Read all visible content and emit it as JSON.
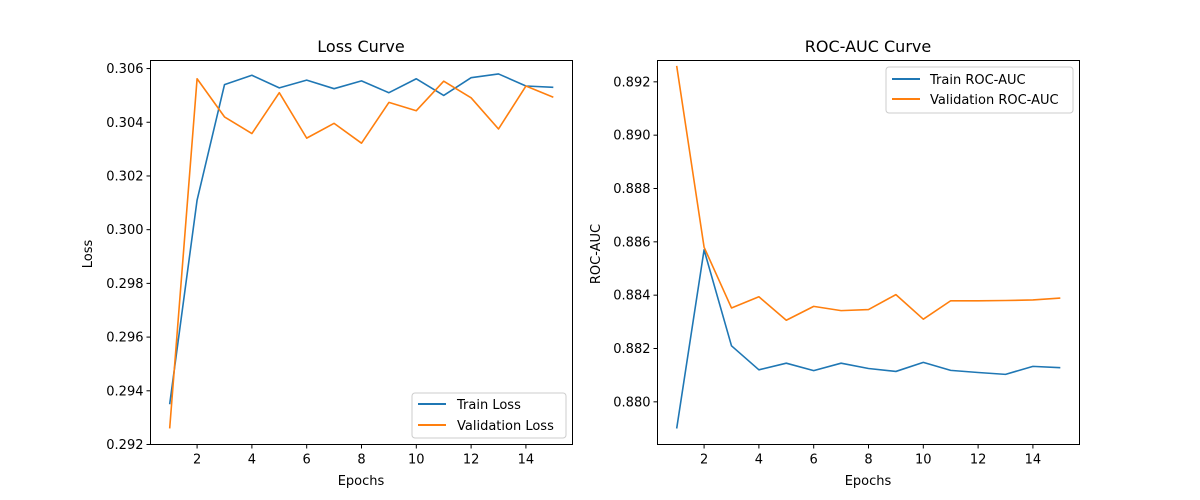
{
  "chart_data": [
    {
      "type": "line",
      "title": "Loss Curve",
      "xlabel": "Epochs",
      "ylabel": "Loss",
      "x": [
        1,
        2,
        3,
        4,
        5,
        6,
        7,
        8,
        9,
        10,
        11,
        12,
        13,
        14,
        15
      ],
      "xlim": [
        0.3,
        15.7
      ],
      "ylim": [
        0.292,
        0.3063
      ],
      "xticks": [
        2,
        4,
        6,
        8,
        10,
        12,
        14
      ],
      "yticks": [
        0.292,
        0.294,
        0.296,
        0.298,
        0.3,
        0.302,
        0.304,
        0.306
      ],
      "ytick_decimals": 3,
      "grid": false,
      "legend_position": "lower-right",
      "series": [
        {
          "name": "Train Loss",
          "color": "#1f77b4",
          "values": [
            0.2935,
            0.3011,
            0.3054,
            0.30575,
            0.30528,
            0.30557,
            0.30525,
            0.30554,
            0.3051,
            0.30562,
            0.305,
            0.30566,
            0.3058,
            0.30535,
            0.3053
          ]
        },
        {
          "name": "Validation Loss",
          "color": "#ff7f0e",
          "values": [
            0.2926,
            0.30562,
            0.3042,
            0.30358,
            0.3051,
            0.30341,
            0.30396,
            0.30322,
            0.30474,
            0.30443,
            0.30553,
            0.30491,
            0.30375,
            0.30535,
            0.30493
          ]
        }
      ]
    },
    {
      "type": "line",
      "title": "ROC-AUC Curve",
      "xlabel": "Epochs",
      "ylabel": "ROC-AUC",
      "x": [
        1,
        2,
        3,
        4,
        5,
        6,
        7,
        8,
        9,
        10,
        11,
        12,
        13,
        14,
        15
      ],
      "xlim": [
        0.3,
        15.7
      ],
      "ylim": [
        0.8784,
        0.8928
      ],
      "xticks": [
        2,
        4,
        6,
        8,
        10,
        12,
        14
      ],
      "yticks": [
        0.88,
        0.882,
        0.884,
        0.886,
        0.888,
        0.89,
        0.892
      ],
      "ytick_decimals": 3,
      "grid": false,
      "legend_position": "upper-right",
      "series": [
        {
          "name": "Train ROC-AUC",
          "color": "#1f77b4",
          "values": [
            0.879,
            0.8857,
            0.8821,
            0.8812,
            0.88145,
            0.88117,
            0.88145,
            0.88125,
            0.88114,
            0.88148,
            0.88118,
            0.8811,
            0.88103,
            0.88133,
            0.88128
          ]
        },
        {
          "name": "Validation ROC-AUC",
          "color": "#ff7f0e",
          "values": [
            0.8926,
            0.8858,
            0.88352,
            0.88394,
            0.88306,
            0.88358,
            0.88342,
            0.88346,
            0.88402,
            0.8831,
            0.88379,
            0.88379,
            0.8838,
            0.88382,
            0.88389
          ]
        }
      ]
    }
  ]
}
